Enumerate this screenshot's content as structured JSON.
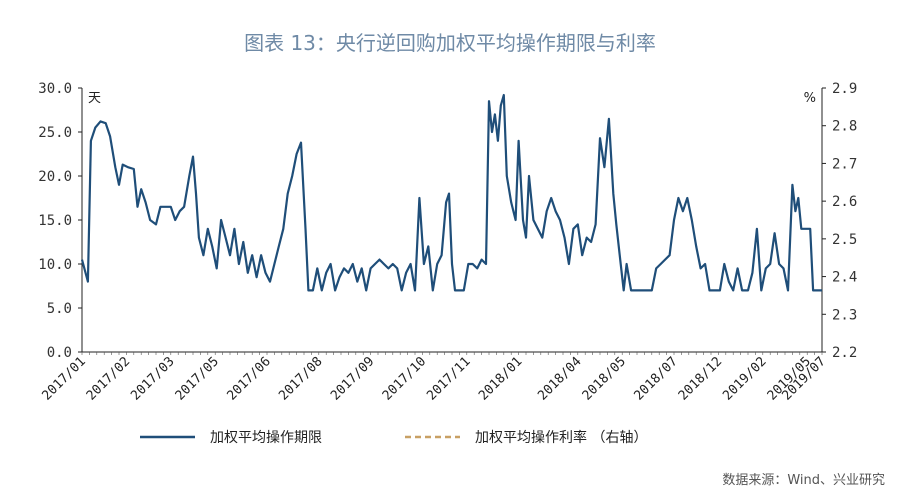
{
  "title": "图表 13：央行逆回购加权平均操作期限与利率",
  "source": "数据来源：Wind、兴业研究",
  "chart_data": {
    "type": "line",
    "title": "图表 13：央行逆回购加权平均操作期限与利率",
    "left_axis": {
      "unit": "天",
      "ylim": [
        0,
        30
      ],
      "ticks": [
        "0.0",
        "5.0",
        "10.0",
        "15.0",
        "20.0",
        "25.0",
        "30.0"
      ]
    },
    "right_axis": {
      "unit": "%",
      "ylim": [
        2.2,
        2.9
      ],
      "ticks": [
        "2.2",
        "2.3",
        "2.4",
        "2.5",
        "2.6",
        "2.7",
        "2.8",
        "2.9"
      ]
    },
    "x_tick_labels": [
      "2017/01",
      "2017/02",
      "2017/03",
      "2017/05",
      "2017/06",
      "2017/08",
      "2017/09",
      "2017/10",
      "2017/11",
      "2018/01",
      "2018/04",
      "2018/05",
      "2018/07",
      "2018/12",
      "2019/02",
      "2019/05",
      "2019/07"
    ],
    "x_range": [
      0,
      100
    ],
    "x_tick_positions": [
      0,
      6,
      12,
      18,
      25,
      32,
      39,
      46,
      52,
      59,
      67,
      73,
      80,
      86,
      92,
      98,
      100
    ],
    "grid": false,
    "legend_position": "bottom",
    "series": [
      {
        "name": "加权平均操作期限",
        "axis": "left",
        "color": "#1f4e79",
        "style": "solid",
        "points": [
          [
            0,
            10.5
          ],
          [
            0.8,
            8.0
          ],
          [
            1.2,
            24.0
          ],
          [
            1.8,
            25.5
          ],
          [
            2.5,
            26.2
          ],
          [
            3.2,
            26.0
          ],
          [
            3.8,
            24.5
          ],
          [
            4.5,
            21.0
          ],
          [
            5.0,
            19.0
          ],
          [
            5.5,
            21.3
          ],
          [
            6.2,
            21.0
          ],
          [
            7.0,
            20.8
          ],
          [
            7.5,
            16.5
          ],
          [
            8.0,
            18.5
          ],
          [
            8.6,
            17.0
          ],
          [
            9.2,
            15.0
          ],
          [
            10.0,
            14.5
          ],
          [
            10.6,
            16.5
          ],
          [
            11.4,
            16.5
          ],
          [
            12.0,
            16.5
          ],
          [
            12.6,
            15.0
          ],
          [
            13.2,
            16.0
          ],
          [
            13.8,
            16.5
          ],
          [
            14.5,
            20.0
          ],
          [
            15.0,
            22.2
          ],
          [
            15.4,
            18.0
          ],
          [
            15.8,
            13.0
          ],
          [
            16.4,
            11.0
          ],
          [
            17.0,
            14.0
          ],
          [
            17.6,
            12.0
          ],
          [
            18.2,
            9.5
          ],
          [
            18.8,
            15.0
          ],
          [
            19.4,
            13.0
          ],
          [
            20.0,
            11.0
          ],
          [
            20.6,
            14.0
          ],
          [
            21.2,
            10.0
          ],
          [
            21.8,
            12.5
          ],
          [
            22.4,
            9.0
          ],
          [
            23.0,
            11.0
          ],
          [
            23.6,
            8.5
          ],
          [
            24.2,
            11.0
          ],
          [
            24.8,
            9.0
          ],
          [
            25.4,
            8.0
          ],
          [
            26.0,
            10.0
          ],
          [
            26.6,
            12.0
          ],
          [
            27.2,
            14.0
          ],
          [
            27.8,
            18.0
          ],
          [
            28.4,
            20.0
          ],
          [
            29.0,
            22.5
          ],
          [
            29.6,
            23.8
          ],
          [
            30.2,
            14.0
          ],
          [
            30.6,
            7.0
          ],
          [
            31.2,
            7.0
          ],
          [
            31.8,
            9.5
          ],
          [
            32.4,
            7.0
          ],
          [
            33.0,
            9.0
          ],
          [
            33.6,
            10.0
          ],
          [
            34.2,
            7.0
          ],
          [
            34.8,
            8.5
          ],
          [
            35.4,
            9.5
          ],
          [
            36.0,
            9.0
          ],
          [
            36.6,
            10.0
          ],
          [
            37.2,
            8.0
          ],
          [
            37.8,
            9.5
          ],
          [
            38.4,
            7.0
          ],
          [
            39.0,
            9.5
          ],
          [
            39.6,
            10.0
          ],
          [
            40.2,
            10.5
          ],
          [
            40.8,
            10.0
          ],
          [
            41.4,
            9.5
          ],
          [
            42.0,
            10.0
          ],
          [
            42.6,
            9.5
          ],
          [
            43.2,
            7.0
          ],
          [
            43.8,
            9.0
          ],
          [
            44.4,
            10.0
          ],
          [
            45.0,
            7.0
          ],
          [
            45.6,
            17.5
          ],
          [
            46.2,
            10.0
          ],
          [
            46.8,
            12.0
          ],
          [
            47.4,
            7.0
          ],
          [
            48.0,
            10.0
          ],
          [
            48.6,
            11.0
          ],
          [
            49.2,
            17.0
          ],
          [
            49.6,
            18.0
          ],
          [
            50.0,
            10.0
          ],
          [
            50.4,
            7.0
          ],
          [
            51.0,
            7.0
          ],
          [
            51.6,
            7.0
          ],
          [
            52.2,
            10.0
          ],
          [
            52.8,
            10.0
          ],
          [
            53.4,
            9.5
          ],
          [
            54.0,
            10.5
          ],
          [
            54.6,
            10.0
          ],
          [
            55.0,
            28.5
          ],
          [
            55.4,
            25.0
          ],
          [
            55.8,
            27.0
          ],
          [
            56.2,
            24.0
          ],
          [
            56.6,
            28.0
          ],
          [
            57.0,
            29.2
          ],
          [
            57.4,
            20.0
          ],
          [
            58.0,
            17.0
          ],
          [
            58.6,
            15.0
          ],
          [
            59.0,
            24.0
          ],
          [
            59.6,
            15.0
          ],
          [
            60.0,
            13.0
          ],
          [
            60.4,
            20.0
          ],
          [
            61.0,
            15.0
          ],
          [
            61.6,
            14.0
          ],
          [
            62.2,
            13.0
          ],
          [
            62.8,
            16.0
          ],
          [
            63.4,
            17.5
          ],
          [
            64.0,
            16.0
          ],
          [
            64.6,
            15.0
          ],
          [
            65.2,
            13.0
          ],
          [
            65.8,
            10.0
          ],
          [
            66.4,
            14.0
          ],
          [
            67.0,
            14.5
          ],
          [
            67.6,
            11.0
          ],
          [
            68.2,
            13.0
          ],
          [
            68.8,
            12.5
          ],
          [
            69.4,
            14.5
          ],
          [
            70.0,
            24.3
          ],
          [
            70.6,
            21.0
          ],
          [
            71.2,
            26.5
          ],
          [
            71.8,
            18.0
          ],
          [
            72.2,
            14.5
          ],
          [
            72.8,
            10.0
          ],
          [
            73.2,
            7.0
          ],
          [
            73.6,
            10.0
          ],
          [
            74.2,
            7.0
          ],
          [
            75.0,
            7.0
          ],
          [
            76.0,
            7.0
          ],
          [
            77.0,
            7.0
          ],
          [
            77.6,
            9.5
          ],
          [
            78.2,
            10.0
          ],
          [
            78.8,
            10.5
          ],
          [
            79.4,
            11.0
          ],
          [
            80.0,
            15.0
          ],
          [
            80.6,
            17.5
          ],
          [
            81.2,
            16.0
          ],
          [
            81.8,
            17.5
          ],
          [
            82.4,
            15.0
          ],
          [
            83.0,
            12.0
          ],
          [
            83.6,
            9.5
          ],
          [
            84.2,
            10.0
          ],
          [
            84.8,
            7.0
          ],
          [
            85.6,
            7.0
          ],
          [
            86.2,
            7.0
          ],
          [
            86.8,
            10.0
          ],
          [
            87.4,
            8.0
          ],
          [
            88.0,
            7.0
          ],
          [
            88.6,
            9.5
          ],
          [
            89.2,
            7.0
          ],
          [
            90.0,
            7.0
          ],
          [
            90.6,
            9.0
          ],
          [
            91.2,
            14.0
          ],
          [
            91.8,
            7.0
          ],
          [
            92.4,
            9.5
          ],
          [
            93.0,
            10.0
          ],
          [
            93.6,
            13.5
          ],
          [
            94.2,
            10.0
          ],
          [
            94.8,
            9.5
          ],
          [
            95.4,
            7.0
          ],
          [
            96.0,
            19.0
          ],
          [
            96.4,
            16.0
          ],
          [
            96.8,
            17.5
          ],
          [
            97.2,
            14.0
          ],
          [
            97.8,
            14.0
          ],
          [
            98.4,
            14.0
          ],
          [
            98.8,
            7.0
          ],
          [
            100.0,
            7.0
          ]
        ]
      },
      {
        "name": "加权平均操作利率 （右轴）",
        "axis": "right",
        "color": "#c8a064",
        "style": "dashed",
        "points": []
      }
    ]
  },
  "legend": {
    "items": [
      {
        "label": "加权平均操作期限",
        "color": "#1f4e79",
        "style": "solid"
      },
      {
        "label": "加权平均操作利率 （右轴）",
        "color": "#c8a064",
        "style": "dashed"
      }
    ]
  }
}
